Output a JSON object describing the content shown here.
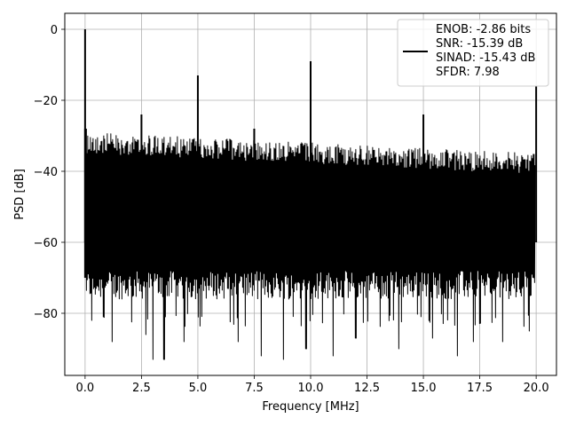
{
  "chart_data": {
    "type": "line",
    "xlabel": "Frequency [MHz]",
    "ylabel": "PSD [dB]",
    "xlim": [
      -0.9,
      20.9
    ],
    "ylim": [
      -97.5,
      4.5
    ],
    "xticks": [
      0.0,
      2.5,
      5.0,
      7.5,
      10.0,
      12.5,
      15.0,
      17.5,
      20.0
    ],
    "xtick_labels": [
      "0.0",
      "2.5",
      "5.0",
      "7.5",
      "10.0",
      "12.5",
      "15.0",
      "17.5",
      "20.0"
    ],
    "yticks": [
      0,
      -20,
      -40,
      -60,
      -80
    ],
    "ytick_labels": [
      "0",
      "−20",
      "−40",
      "−60",
      "−80"
    ],
    "grid": true,
    "legend_position": "top-right",
    "legend_lines": [
      "ENOB: -2.86 bits",
      "SNR: -15.39 dB",
      "SINAD: -15.43 dB",
      "SFDR: 7.98"
    ],
    "series_color": "#000000",
    "noise_band": {
      "x_range": [
        0.0,
        20.0
      ],
      "upper_start": -29,
      "upper_end": -35,
      "lower_typical": -70,
      "lower_dips_to": -93
    },
    "spikes": [
      {
        "x": 0.0,
        "y": 0.0
      },
      {
        "x": 2.5,
        "y": -24
      },
      {
        "x": 5.0,
        "y": -13
      },
      {
        "x": 7.5,
        "y": -28
      },
      {
        "x": 10.0,
        "y": -9
      },
      {
        "x": 15.0,
        "y": -24
      },
      {
        "x": 20.0,
        "y": -16
      }
    ],
    "deep_dips": [
      {
        "x": 0.3,
        "y": -82
      },
      {
        "x": 1.2,
        "y": -88
      },
      {
        "x": 2.7,
        "y": -86
      },
      {
        "x": 3.0,
        "y": -93
      },
      {
        "x": 3.5,
        "y": -93
      },
      {
        "x": 4.4,
        "y": -88
      },
      {
        "x": 6.8,
        "y": -88
      },
      {
        "x": 7.8,
        "y": -92
      },
      {
        "x": 8.8,
        "y": -93
      },
      {
        "x": 9.8,
        "y": -90
      },
      {
        "x": 11.0,
        "y": -92
      },
      {
        "x": 12.0,
        "y": -87
      },
      {
        "x": 13.9,
        "y": -90
      },
      {
        "x": 15.4,
        "y": -87
      },
      {
        "x": 16.5,
        "y": -92
      },
      {
        "x": 17.2,
        "y": -88
      },
      {
        "x": 18.5,
        "y": -88
      },
      {
        "x": 19.7,
        "y": -85
      }
    ]
  }
}
